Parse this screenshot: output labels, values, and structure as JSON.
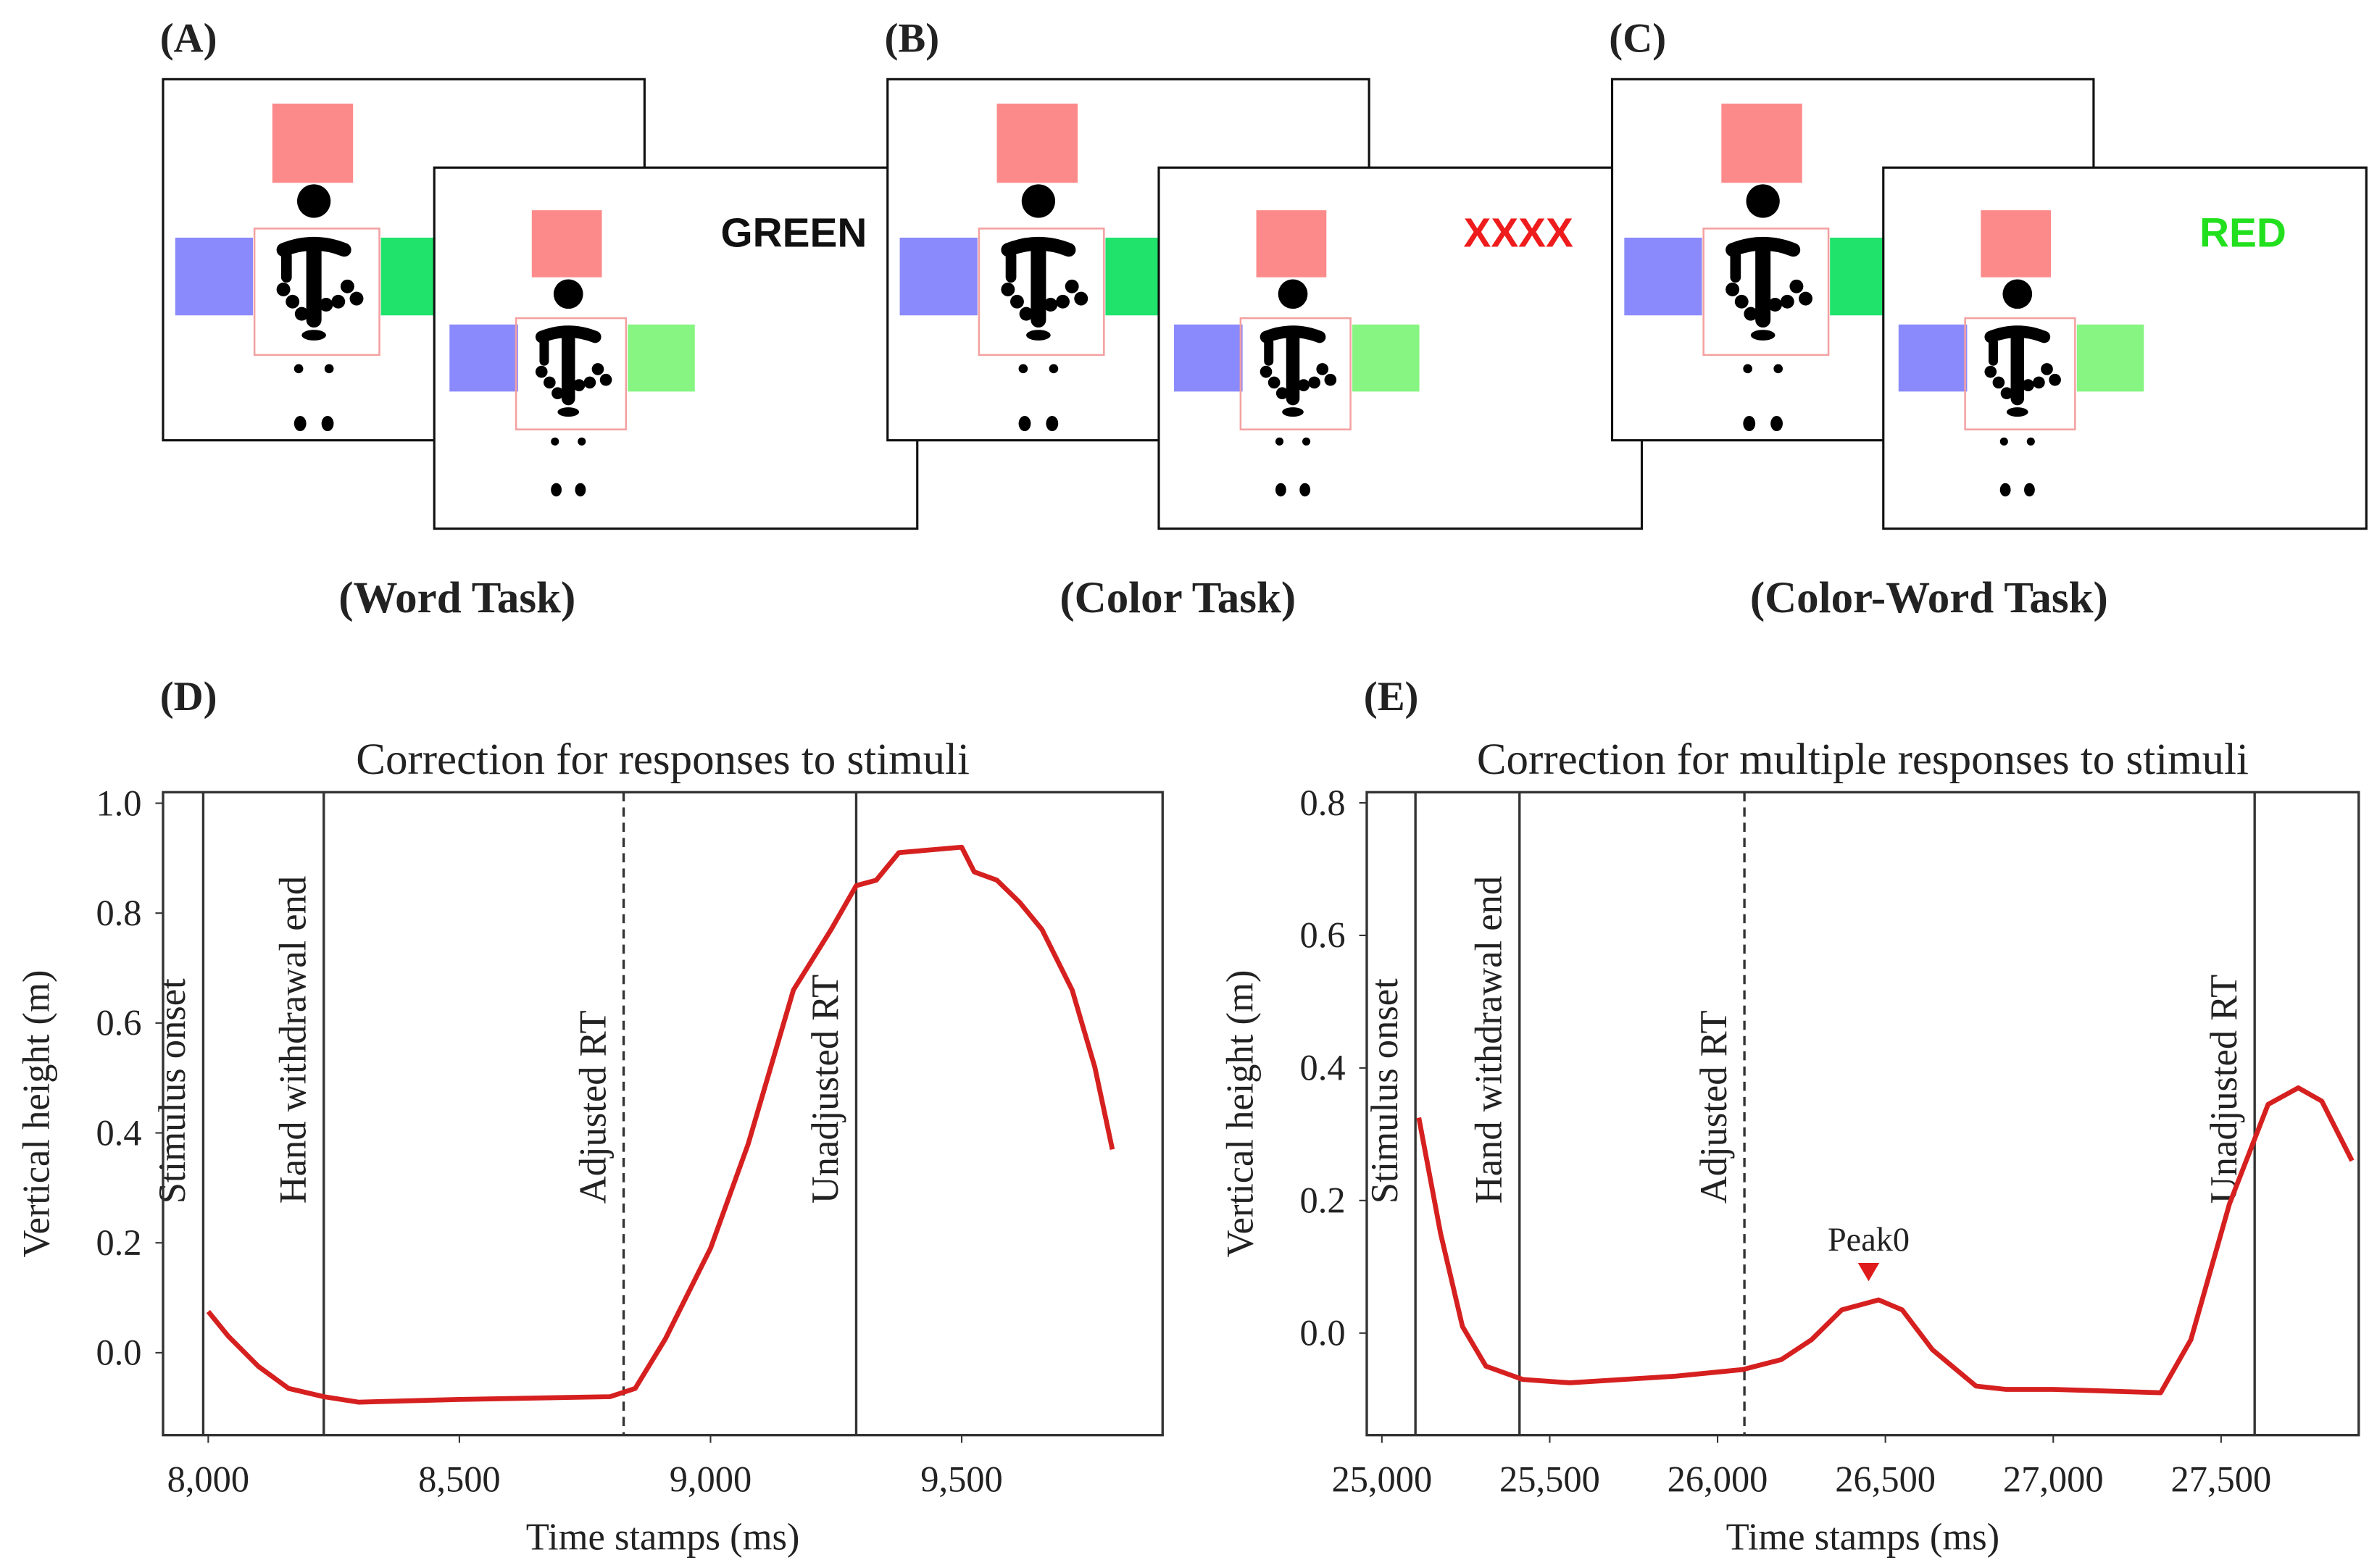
{
  "panels": [
    {
      "label": "(A)",
      "word": "GREEN",
      "word_color": "#111111",
      "caption": "(Word Task)"
    },
    {
      "label": "(B)",
      "word": "XXXX",
      "word_color": "#ee1c1c",
      "caption": "(Color Task)"
    },
    {
      "label": "(C)",
      "word": "RED",
      "word_color": "#22e01e",
      "caption": "(Color-Word Task)"
    }
  ],
  "chart_data": [
    {
      "type": "line",
      "label": "(D)",
      "title": "Correction for responses to stimuli",
      "x_label": "Time stamps (ms)",
      "y_label": "Vertical height (m)",
      "color": "#d62020",
      "x": [
        8000,
        8040,
        8100,
        8160,
        8230,
        8300,
        8500,
        8800,
        8850,
        8910,
        9000,
        9075,
        9165,
        9240,
        9290,
        9330,
        9375,
        9500,
        9525,
        9570,
        9615,
        9660,
        9720,
        9765,
        9800
      ],
      "values": [
        0.075,
        0.03,
        -0.025,
        -0.065,
        -0.08,
        -0.09,
        -0.085,
        -0.08,
        -0.065,
        0.025,
        0.19,
        0.38,
        0.66,
        0.77,
        0.85,
        0.86,
        0.91,
        0.92,
        0.875,
        0.86,
        0.82,
        0.77,
        0.66,
        0.52,
        0.37
      ],
      "xlim": [
        7910,
        9900
      ],
      "ylim": [
        -0.15,
        1.02
      ],
      "xticks": [
        {
          "value": 8000,
          "label": "8,000"
        },
        {
          "value": 8500,
          "label": "8,500"
        },
        {
          "value": 9000,
          "label": "9,000"
        },
        {
          "value": 9500,
          "label": "9,500"
        }
      ],
      "yticks": [
        {
          "value": 0,
          "label": "0.0"
        },
        0.2,
        0.4,
        0.6,
        0.8,
        {
          "value": 1,
          "label": "1.0"
        }
      ],
      "vlines": [
        {
          "x": 7990,
          "label": "Stimulus onset",
          "style": "solid"
        },
        {
          "x": 8230,
          "label": "Hand withdrawal end",
          "style": "solid"
        },
        {
          "x": 8827,
          "label": "Adjusted RT",
          "style": "dashed"
        },
        {
          "x": 9290,
          "label": "Unadjusted RT",
          "style": "solid"
        }
      ]
    },
    {
      "type": "line",
      "label": "(E)",
      "title": "Correction for multiple responses to stimuli",
      "x_label": "Time stamps (ms)",
      "y_label": "Vertical height (m)",
      "color": "#d62020",
      "x": [
        25110,
        25175,
        25240,
        25310,
        25420,
        25560,
        25875,
        26075,
        26190,
        26280,
        26370,
        26480,
        26550,
        26640,
        26770,
        26860,
        27000,
        27320,
        27410,
        27525,
        27640,
        27730,
        27800,
        27890
      ],
      "values": [
        0.325,
        0.15,
        0.01,
        -0.05,
        -0.07,
        -0.075,
        -0.065,
        -0.055,
        -0.04,
        -0.01,
        0.035,
        0.05,
        0.035,
        -0.025,
        -0.08,
        -0.085,
        -0.085,
        -0.09,
        -0.01,
        0.195,
        0.345,
        0.37,
        0.35,
        0.26
      ],
      "xlim": [
        24955,
        27910
      ],
      "ylim": [
        -0.154,
        0.816
      ],
      "xticks": [
        {
          "value": 25000,
          "label": "25,000"
        },
        {
          "value": 25500,
          "label": "25,500"
        },
        {
          "value": 26000,
          "label": "26,000"
        },
        {
          "value": 26500,
          "label": "26,500"
        },
        {
          "value": 27000,
          "label": "27,000"
        },
        {
          "value": 27500,
          "label": "27,500"
        }
      ],
      "yticks": [
        {
          "value": 0,
          "label": "0.0"
        },
        0.2,
        0.4,
        0.6,
        0.8
      ],
      "vlines": [
        {
          "x": 25100,
          "label": "Stimulus onset",
          "style": "solid"
        },
        {
          "x": 25410,
          "label": "Hand withdrawal end",
          "style": "solid"
        },
        {
          "x": 26080,
          "label": "Adjusted RT",
          "style": "dashed"
        },
        {
          "x": 27600,
          "label": "Unadjusted RT",
          "style": "solid"
        }
      ],
      "annotations": [
        {
          "text": "Peak0",
          "x": 26450,
          "y": 0.092
        }
      ]
    }
  ]
}
